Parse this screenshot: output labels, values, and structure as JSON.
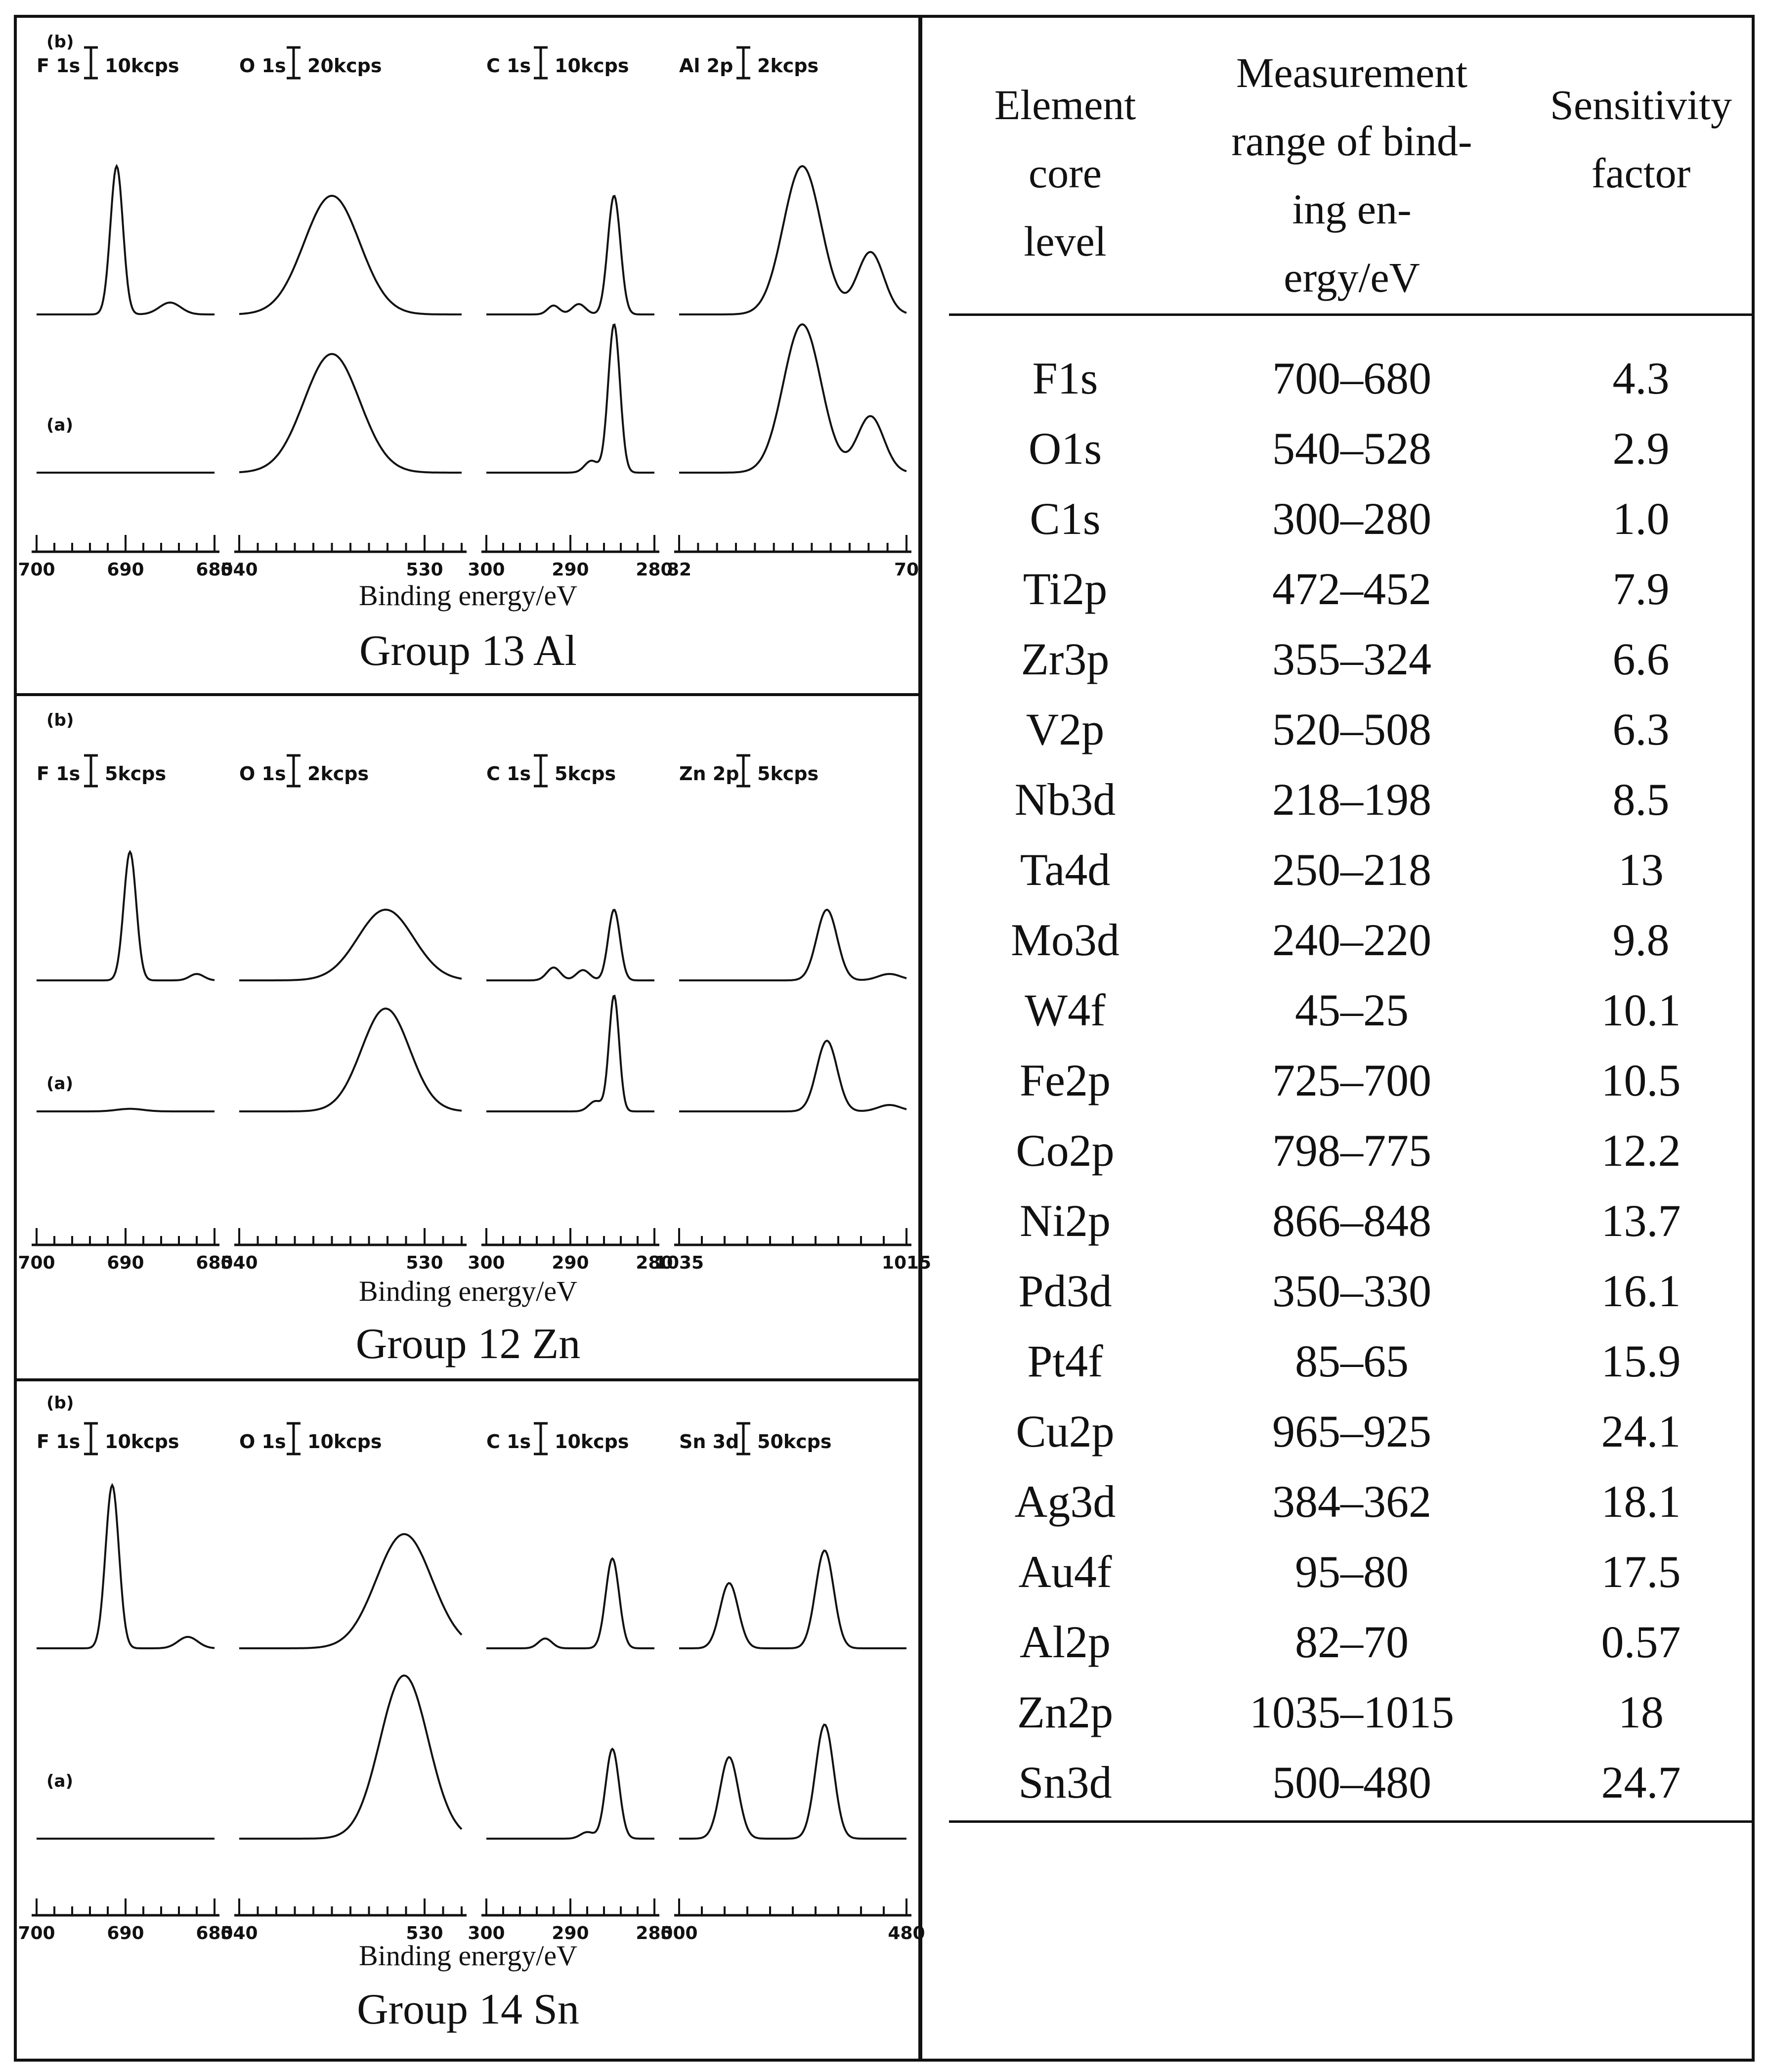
{
  "chart_data": [
    {
      "type": "line",
      "title": "Group 13 Al",
      "xlabel": "Binding energy/eV",
      "series_labels": [
        "(b)",
        "(a)"
      ],
      "panels": [
        {
          "element": "F 1s",
          "scale": "10kcps",
          "xlim": [
            700,
            680
          ],
          "ticks": [
            700,
            690,
            680
          ],
          "peaks_b": [
            [
              691,
              1.0,
              0.7
            ],
            [
              685,
              0.08,
              1.2
            ]
          ],
          "peaks_a": []
        },
        {
          "element": "O 1s",
          "scale": "20kcps",
          "xlim": [
            540,
            528
          ],
          "ticks": [
            540,
            530
          ],
          "peaks_b": [
            [
              535,
              0.8,
              1.5
            ]
          ],
          "peaks_a": [
            [
              535,
              0.8,
              1.5
            ]
          ]
        },
        {
          "element": "C 1s",
          "scale": "10kcps",
          "xlim": [
            300,
            280
          ],
          "ticks": [
            300,
            290,
            280
          ],
          "peaks_b": [
            [
              284.8,
              0.8,
              0.75
            ],
            [
              289,
              0.07,
              0.8
            ],
            [
              292,
              0.06,
              0.7
            ]
          ],
          "peaks_a": [
            [
              284.8,
              1.0,
              0.7
            ],
            [
              287.5,
              0.08,
              0.8
            ]
          ]
        },
        {
          "element": "Al 2p",
          "scale": "2kcps",
          "xlim": [
            82,
            70
          ],
          "ticks": [
            82,
            70
          ],
          "peaks_b": [
            [
              75.5,
              1.0,
              1.0
            ],
            [
              71.9,
              0.42,
              0.7
            ]
          ],
          "peaks_a": [
            [
              75.5,
              1.0,
              1.0
            ],
            [
              71.9,
              0.38,
              0.7
            ]
          ]
        }
      ]
    },
    {
      "type": "line",
      "title": "Group 12 Zn",
      "xlabel": "Binding energy/eV",
      "series_labels": [
        "(b)",
        "(a)"
      ],
      "panels": [
        {
          "element": "F 1s",
          "scale": "5kcps",
          "xlim": [
            700,
            680
          ],
          "ticks": [
            700,
            690,
            680
          ],
          "peaks_b": [
            [
              689.5,
              1.0,
              0.7
            ],
            [
              682,
              0.05,
              0.8
            ]
          ],
          "peaks_a": [
            [
              689.5,
              0.02,
              1.5
            ]
          ]
        },
        {
          "element": "O 1s",
          "scale": "2kcps",
          "xlim": [
            540,
            528
          ],
          "ticks": [
            540,
            530
          ],
          "peaks_b": [
            [
              532.1,
              0.55,
              1.5
            ]
          ],
          "peaks_a": [
            [
              532.1,
              0.8,
              1.3
            ]
          ]
        },
        {
          "element": "C 1s",
          "scale": "5kcps",
          "xlim": [
            300,
            280
          ],
          "ticks": [
            300,
            290,
            280
          ],
          "peaks_b": [
            [
              284.8,
              0.55,
              0.7
            ],
            [
              288.5,
              0.08,
              0.8
            ],
            [
              292,
              0.1,
              0.8
            ]
          ],
          "peaks_a": [
            [
              284.8,
              0.9,
              0.6
            ],
            [
              287,
              0.08,
              0.8
            ]
          ]
        },
        {
          "element": "Zn 2p",
          "scale": "5kcps",
          "xlim": [
            1035,
            1015
          ],
          "ticks": [
            1035,
            1015
          ],
          "peaks_b": [
            [
              1022,
              0.55,
              0.9
            ],
            [
              1016.5,
              0.05,
              1.0
            ]
          ],
          "peaks_a": [
            [
              1022,
              0.55,
              0.9
            ],
            [
              1016.5,
              0.05,
              1.0
            ]
          ]
        }
      ]
    },
    {
      "type": "line",
      "title": "Group 14 Sn",
      "xlabel": "Binding energy/eV",
      "series_labels": [
        "(b)",
        "(a)"
      ],
      "panels": [
        {
          "element": "F 1s",
          "scale": "10kcps",
          "xlim": [
            700,
            680
          ],
          "ticks": [
            700,
            690,
            680
          ],
          "peaks_b": [
            [
              691.5,
              1.0,
              0.75
            ],
            [
              683,
              0.07,
              1.1
            ]
          ],
          "peaks_a": []
        },
        {
          "element": "O 1s",
          "scale": "10kcps",
          "xlim": [
            540,
            528
          ],
          "ticks": [
            540,
            530
          ],
          "peaks_b": [
            [
              531.1,
              0.7,
              1.5
            ]
          ],
          "peaks_a": [
            [
              531.1,
              1.0,
              1.3
            ]
          ]
        },
        {
          "element": "C 1s",
          "scale": "10kcps",
          "xlim": [
            300,
            280
          ],
          "ticks": [
            300,
            290,
            280
          ],
          "peaks_b": [
            [
              285,
              0.55,
              0.8
            ],
            [
              293,
              0.06,
              0.8
            ]
          ],
          "peaks_a": [
            [
              285,
              0.55,
              0.8
            ],
            [
              288,
              0.04,
              0.8
            ]
          ]
        },
        {
          "element": "Sn 3d",
          "scale": "50kcps",
          "xlim": [
            500,
            480
          ],
          "ticks": [
            500,
            480
          ],
          "peaks_b": [
            [
              495.6,
              0.4,
              0.8
            ],
            [
              487.2,
              0.6,
              0.8
            ]
          ],
          "peaks_a": [
            [
              495.6,
              0.5,
              0.8
            ],
            [
              487.2,
              0.7,
              0.8
            ]
          ]
        }
      ]
    },
    {
      "type": "table",
      "columns": [
        "Element core level",
        "Measurement range of binding energy/eV",
        "Sensitivity factor"
      ],
      "rows": [
        [
          "F1s",
          "700–680",
          "4.3"
        ],
        [
          "O1s",
          "540–528",
          "2.9"
        ],
        [
          "C1s",
          "300–280",
          "1.0"
        ],
        [
          "Ti2p",
          "472–452",
          "7.9"
        ],
        [
          "Zr3p",
          "355–324",
          "6.6"
        ],
        [
          "V2p",
          "520–508",
          "6.3"
        ],
        [
          "Nb3d",
          "218–198",
          "8.5"
        ],
        [
          "Ta4d",
          "250–218",
          "13"
        ],
        [
          "Mo3d",
          "240–220",
          "9.8"
        ],
        [
          "W4f",
          "45–25",
          "10.1"
        ],
        [
          "Fe2p",
          "725–700",
          "10.5"
        ],
        [
          "Co2p",
          "798–775",
          "12.2"
        ],
        [
          "Ni2p",
          "866–848",
          "13.7"
        ],
        [
          "Pd3d",
          "350–330",
          "16.1"
        ],
        [
          "Pt4f",
          "85–65",
          "15.9"
        ],
        [
          "Cu2p",
          "965–925",
          "24.1"
        ],
        [
          "Ag3d",
          "384–362",
          "18.1"
        ],
        [
          "Au4f",
          "95–80",
          "17.5"
        ],
        [
          "Al2p",
          "82–70",
          "0.57"
        ],
        [
          "Zn2p",
          "1035–1015",
          "18"
        ],
        [
          "Sn3d",
          "500–480",
          "24.7"
        ]
      ]
    }
  ],
  "table": {
    "headers": [
      [
        "Element",
        "core",
        "level"
      ],
      [
        "Measurement",
        "range of bind-",
        "ing en-",
        "ergy/eV"
      ],
      [
        "Sensitivity",
        "factor"
      ]
    ]
  }
}
